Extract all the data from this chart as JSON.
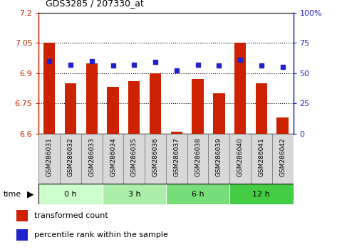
{
  "title": "GDS3285 / 207330_at",
  "samples": [
    "GSM286031",
    "GSM286032",
    "GSM286033",
    "GSM286034",
    "GSM286035",
    "GSM286036",
    "GSM286037",
    "GSM286038",
    "GSM286039",
    "GSM286040",
    "GSM286041",
    "GSM286042"
  ],
  "red_values": [
    7.05,
    6.85,
    6.95,
    6.83,
    6.86,
    6.9,
    6.61,
    6.87,
    6.8,
    7.05,
    6.85,
    6.68
  ],
  "blue_percentiles": [
    60,
    57,
    60,
    56,
    57,
    59,
    52,
    57,
    56,
    61,
    56,
    55
  ],
  "ylim_left": [
    6.6,
    7.2
  ],
  "ylim_right": [
    0,
    100
  ],
  "yticks_left": [
    6.6,
    6.75,
    6.9,
    7.05,
    7.2
  ],
  "yticks_right": [
    0,
    25,
    50,
    75,
    100
  ],
  "grid_lines": [
    6.75,
    6.9,
    7.05
  ],
  "bar_color": "#cc2200",
  "dot_color": "#2222cc",
  "bar_bottom": 6.6,
  "time_groups": [
    {
      "label": "0 h",
      "indices": [
        0,
        1,
        2
      ],
      "color": "#ccffcc"
    },
    {
      "label": "3 h",
      "indices": [
        3,
        4,
        5
      ],
      "color": "#aaeeaa"
    },
    {
      "label": "6 h",
      "indices": [
        6,
        7,
        8
      ],
      "color": "#77dd77"
    },
    {
      "label": "12 h",
      "indices": [
        9,
        10,
        11
      ],
      "color": "#44cc44"
    }
  ],
  "legend_labels": [
    "transformed count",
    "percentile rank within the sample"
  ],
  "xlabel_time": "time",
  "left_tick_color": "#cc2200",
  "right_tick_color": "#2222cc",
  "sample_box_color": "#d8d8d8",
  "sample_box_edge": "#888888"
}
